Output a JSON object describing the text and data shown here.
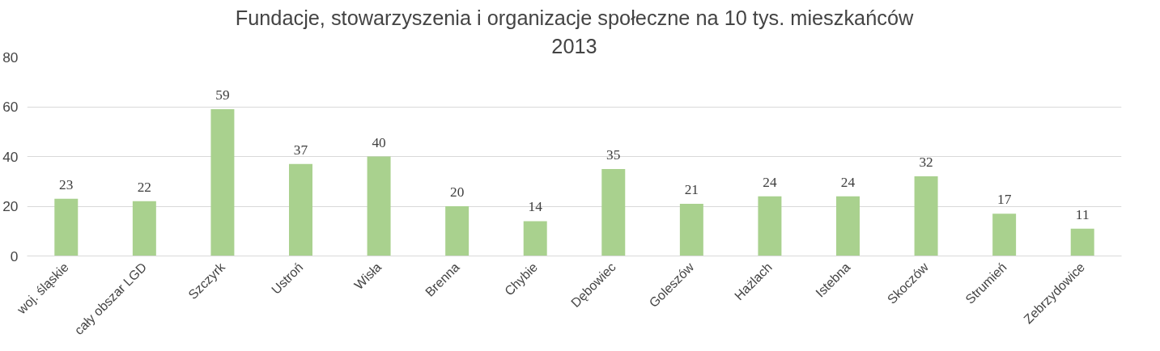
{
  "chart_data": {
    "type": "bar",
    "title": "Fundacje, stowarzyszenia i organizacje społeczne na 10 tys. mieszkańców",
    "subtitle": "2013",
    "categories": [
      "woj. śląskie",
      "cały obszar LGD",
      "Szczyrk",
      "Ustroń",
      "Wisła",
      "Brenna",
      "Chybie",
      "Dębowiec",
      "Goleszów",
      "Hażlach",
      "Istebna",
      "Skoczów",
      "Strumień",
      "Zebrzydowice"
    ],
    "values": [
      23,
      22,
      59,
      37,
      40,
      20,
      14,
      35,
      21,
      24,
      24,
      32,
      17,
      11
    ],
    "color": "#a9d18e",
    "ylim": [
      0,
      80
    ],
    "yticks": [
      0,
      20,
      40,
      60,
      80
    ],
    "grid": "y",
    "data_labels": true
  }
}
